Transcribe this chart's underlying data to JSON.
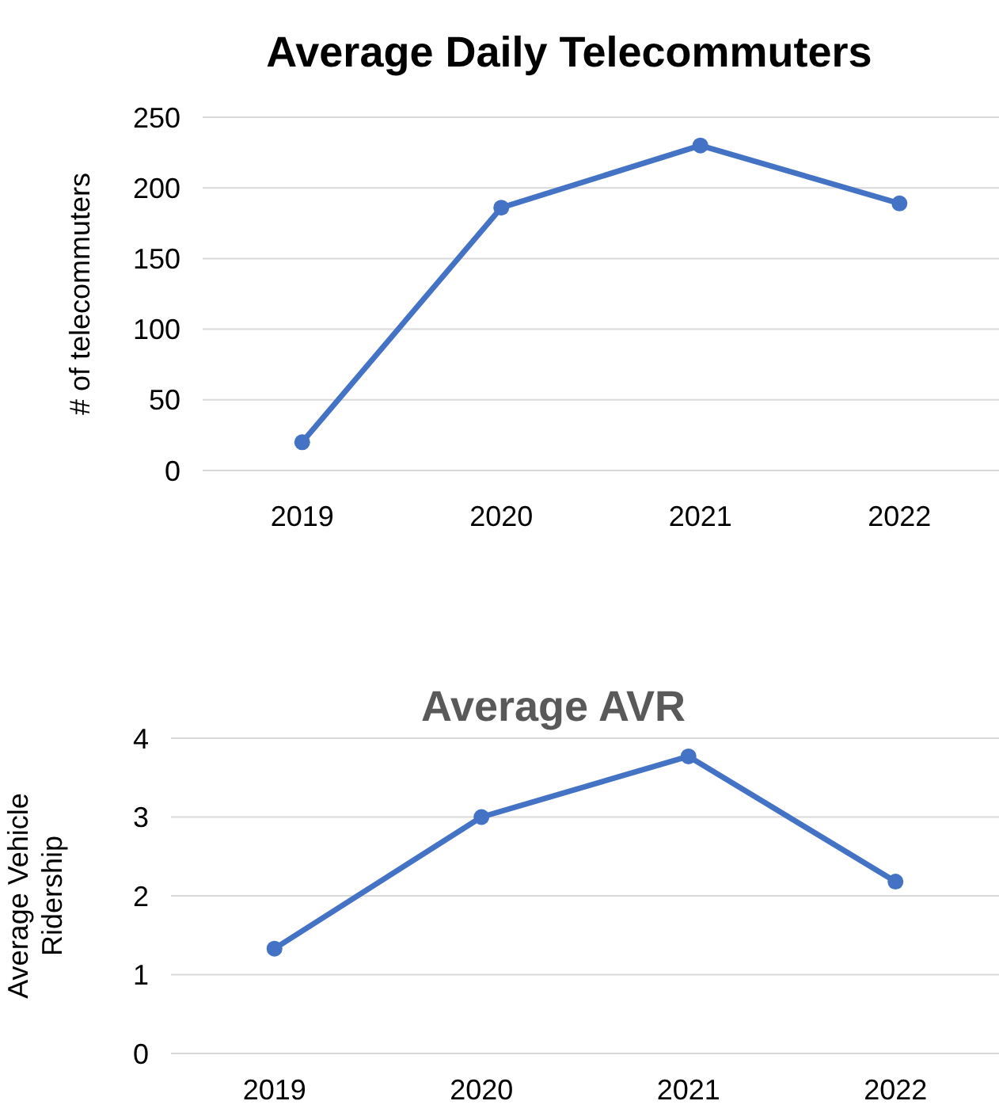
{
  "chart_data": [
    {
      "type": "line",
      "title": "Average Daily Telecommuters",
      "ylabel": "# of telecommuters",
      "categories": [
        "2019",
        "2020",
        "2021",
        "2022"
      ],
      "series": [
        {
          "color": "#4472c4",
          "values": [
            20,
            186,
            230,
            189
          ]
        }
      ],
      "ylim": [
        0,
        250
      ],
      "yticks": [
        0,
        50,
        100,
        150,
        200,
        250
      ],
      "grid": "y",
      "marker": "circle",
      "line_style": "solid"
    },
    {
      "type": "line",
      "title": "Average AVR",
      "ylabel": "Average Vehicle Ridership",
      "categories": [
        "2019",
        "2020",
        "2021",
        "2022"
      ],
      "series": [
        {
          "color": "#4472c4",
          "values": [
            1.33,
            3.0,
            3.77,
            2.18
          ]
        }
      ],
      "ylim": [
        0,
        4
      ],
      "yticks": [
        0,
        1,
        2,
        3,
        4
      ],
      "grid": "y",
      "marker": "circle",
      "line_style": "solid"
    }
  ]
}
